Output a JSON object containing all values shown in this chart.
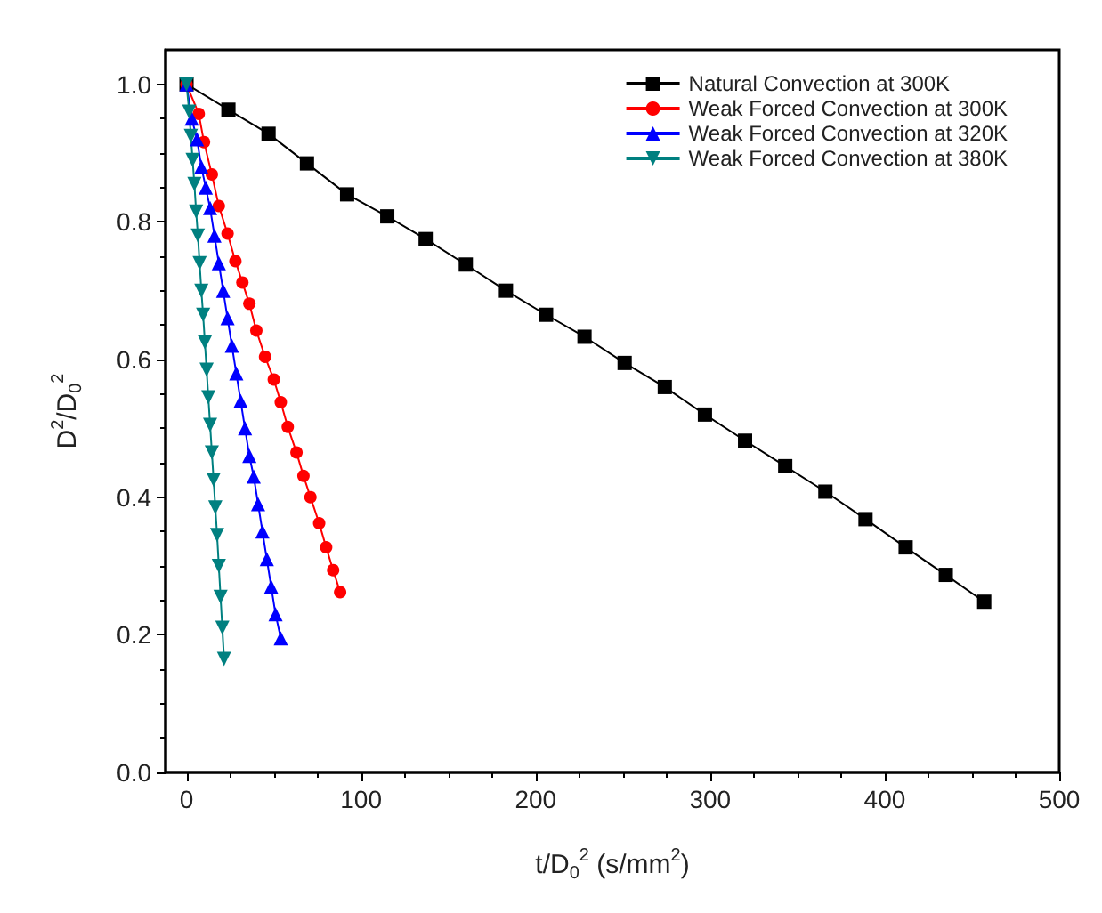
{
  "chart_data": {
    "type": "line",
    "xlabel": "t/D$_{0}$$^{2}$ (s/mm$^{2}$)",
    "ylabel": "D$^{2}$/D$_{0}$$^{2}$",
    "xlim": [
      -12,
      500
    ],
    "ylim": [
      0,
      1.05
    ],
    "xticks": [
      0,
      100,
      200,
      300,
      400,
      500
    ],
    "yticks": [
      {
        "value": 0,
        "label": "0.0"
      },
      0.2,
      0.4,
      0.6,
      0.8,
      {
        "value": 1,
        "label": "1.0"
      }
    ],
    "grid": false,
    "legend": "top right",
    "series": [
      {
        "name": "Natural Convection at 300K",
        "color": "#000000",
        "marker": "square",
        "x": [
          0,
          24,
          47,
          69,
          92,
          115,
          137,
          160,
          183,
          206,
          228,
          251,
          274,
          297,
          320,
          343,
          366,
          389,
          412,
          435,
          457
        ],
        "values": [
          1.0,
          0.963,
          0.928,
          0.885,
          0.84,
          0.808,
          0.775,
          0.738,
          0.7,
          0.665,
          0.633,
          0.595,
          0.56,
          0.52,
          0.482,
          0.445,
          0.408,
          0.368,
          0.327,
          0.287,
          0.248
        ]
      },
      {
        "name": "Weak Forced Convection at 300K",
        "color": "#ff0000",
        "marker": "circle",
        "x": [
          0,
          7,
          10,
          14.5,
          18.5,
          23.5,
          28,
          32,
          36,
          40,
          45,
          50,
          54,
          58,
          63,
          67,
          71,
          76,
          80,
          84,
          88
        ],
        "values": [
          1.0,
          0.957,
          0.916,
          0.869,
          0.823,
          0.783,
          0.743,
          0.712,
          0.681,
          0.642,
          0.604,
          0.571,
          0.538,
          0.502,
          0.465,
          0.431,
          0.4,
          0.362,
          0.327,
          0.294,
          0.262
        ]
      },
      {
        "name": "Weak Forced Convection at 320K",
        "color": "#0000ff",
        "marker": "triangle",
        "x": [
          0,
          3,
          6,
          8.5,
          11,
          13.5,
          16,
          18.5,
          21,
          23.5,
          26,
          28.5,
          31,
          33.5,
          36,
          38.5,
          41,
          43.5,
          46,
          48.5,
          51,
          54
        ],
        "values": [
          1.0,
          0.95,
          0.92,
          0.88,
          0.85,
          0.82,
          0.78,
          0.74,
          0.7,
          0.66,
          0.62,
          0.58,
          0.54,
          0.5,
          0.46,
          0.43,
          0.39,
          0.35,
          0.31,
          0.27,
          0.23,
          0.195
        ]
      },
      {
        "name": "Weak Forced Convection at 380K",
        "color": "#008080",
        "marker": "triangle-down",
        "x": [
          0,
          1.5,
          2.5,
          3.5,
          4.5,
          5.5,
          6.5,
          7.5,
          8.5,
          9.5,
          10.5,
          11.5,
          12.5,
          13.5,
          14.5,
          15.5,
          16.5,
          17.5,
          18.5,
          19.5,
          20.5,
          21.5
        ],
        "values": [
          1.0,
          0.96,
          0.925,
          0.89,
          0.855,
          0.815,
          0.78,
          0.74,
          0.7,
          0.665,
          0.625,
          0.585,
          0.545,
          0.505,
          0.465,
          0.425,
          0.385,
          0.345,
          0.3,
          0.255,
          0.21,
          0.165
        ]
      }
    ]
  }
}
